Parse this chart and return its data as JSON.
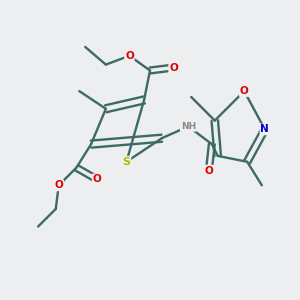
{
  "background_color": "#eceef0",
  "bond_color": "#3d6b63",
  "atom_colors": {
    "S": "#b8b800",
    "O": "#dd0000",
    "N": "#0000cc",
    "H": "#888888",
    "C": "#3d6b63"
  },
  "figsize": [
    3.0,
    3.0
  ],
  "dpi": 100
}
